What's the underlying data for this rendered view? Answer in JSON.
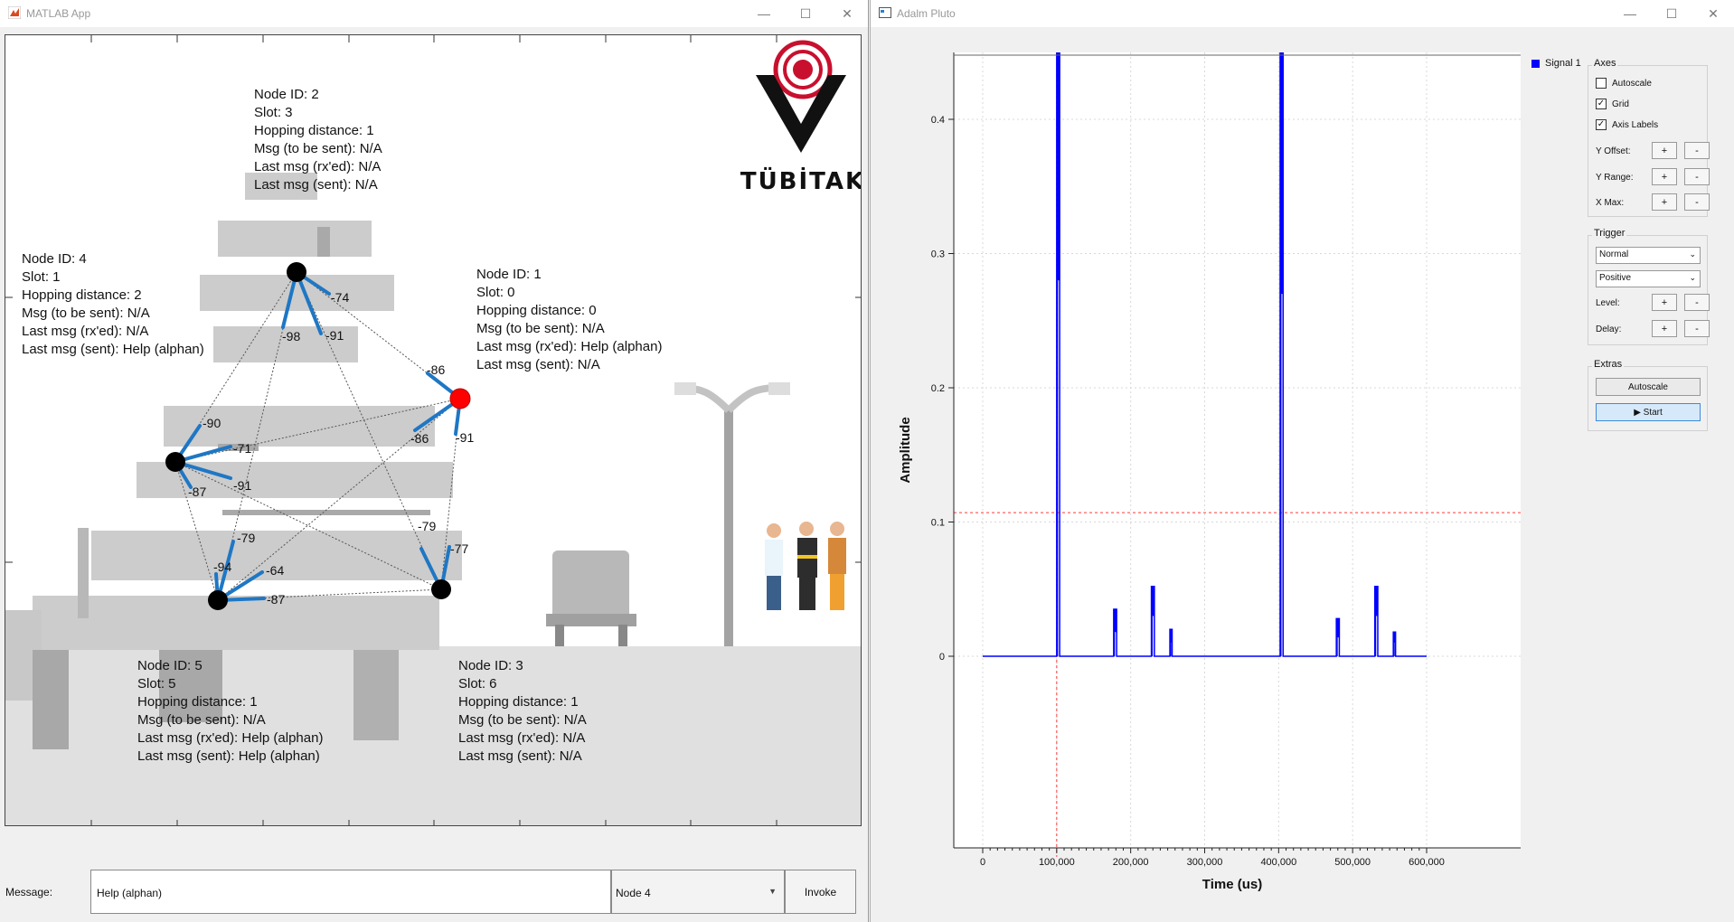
{
  "left_window": {
    "title": "MATLAB App",
    "controls": {
      "minimize": "—",
      "maximize": "☐",
      "close": "✕"
    },
    "logo_text": "TÜBİTAK",
    "nodes": [
      {
        "id_text": "Node ID: 2",
        "slot": "Slot: 3",
        "hop": "Hopping distance: 1",
        "to_send": "Msg (to be sent): N/A",
        "rx": "Last msg (rx'ed): N/A",
        "sent": "Last msg (sent): N/A"
      },
      {
        "id_text": "Node ID: 4",
        "slot": "Slot: 1",
        "hop": "Hopping distance: 2",
        "to_send": "Msg (to be sent): N/A",
        "rx": "Last msg (rx'ed): N/A",
        "sent": "Last msg (sent): Help (alphan)"
      },
      {
        "id_text": "Node ID: 1",
        "slot": "Slot: 0",
        "hop": "Hopping distance: 0",
        "to_send": "Msg (to be sent): N/A",
        "rx": "Last msg (rx'ed): Help (alphan)",
        "sent": "Last msg (sent): N/A"
      },
      {
        "id_text": "Node ID: 5",
        "slot": "Slot: 5",
        "hop": "Hopping distance: 1",
        "to_send": "Msg (to be sent): N/A",
        "rx": "Last msg (rx'ed): Help (alphan)",
        "sent": "Last msg (sent): Help (alphan)"
      },
      {
        "id_text": "Node ID: 3",
        "slot": "Slot: 6",
        "hop": "Hopping distance: 1",
        "to_send": "Msg (to be sent): N/A",
        "rx": "Last msg (rx'ed): N/A",
        "sent": "Last msg (sent): N/A"
      }
    ],
    "rssi_labels": [
      "-74",
      "-98",
      "-91",
      "-86",
      "-86",
      "-91",
      "-90",
      "-71",
      "-87",
      "-91",
      "-79",
      "-64",
      "-94",
      "-87",
      "-79",
      "-77"
    ],
    "message_label": "Message:",
    "message_value": "Help (alphan)",
    "node_select_value": "Node 4",
    "invoke_label": "Invoke"
  },
  "right_window": {
    "title": "Adalm Pluto",
    "controls": {
      "minimize": "—",
      "maximize": "☐",
      "close": "✕"
    },
    "legend": "Signal 1",
    "axes_group": {
      "title": "Axes",
      "autoscale": {
        "label": "Autoscale",
        "checked": false
      },
      "grid": {
        "label": "Grid",
        "checked": true
      },
      "axis_labels": {
        "label": "Axis Labels",
        "checked": true
      },
      "y_offset": "Y Offset:",
      "y_range": "Y Range:",
      "x_max": "X Max:",
      "plus": "+",
      "minus": "-"
    },
    "trigger_group": {
      "title": "Trigger",
      "mode": "Normal",
      "slope": "Positive",
      "level": "Level:",
      "delay": "Delay:"
    },
    "extras_group": {
      "title": "Extras",
      "autoscale_btn": "Autoscale",
      "start_btn": "▶ Start"
    }
  },
  "chart_data": {
    "type": "line",
    "xlabel": "Time (us)",
    "ylabel": "Amplitude",
    "xlim": [
      0,
      600000
    ],
    "ylim": [
      -0.03,
      0.46
    ],
    "x_ticks": [
      "0",
      "100,000",
      "200,000",
      "300,000",
      "400,000",
      "500,000",
      "600,000"
    ],
    "y_ticks": [
      "0",
      "0.1",
      "0.2",
      "0.3",
      "0.4"
    ],
    "grid": true,
    "trigger_level": 0.107,
    "trigger_time": 100000,
    "series": [
      {
        "name": "Signal 1",
        "color": "#0000ff",
        "bursts": [
          {
            "x0": 100000,
            "x1": 104000,
            "high": 0.46,
            "low": 0.28
          },
          {
            "x0": 177000,
            "x1": 181000,
            "high": 0.035,
            "low": 0.018
          },
          {
            "x0": 228000,
            "x1": 232000,
            "high": 0.052,
            "low": 0.03
          },
          {
            "x0": 253000,
            "x1": 256000,
            "high": 0.02,
            "low": 0.01
          },
          {
            "x0": 402000,
            "x1": 406000,
            "high": 0.46,
            "low": 0.27
          },
          {
            "x0": 478000,
            "x1": 482000,
            "high": 0.028,
            "low": 0.014
          },
          {
            "x0": 530000,
            "x1": 534000,
            "high": 0.052,
            "low": 0.03
          },
          {
            "x0": 555000,
            "x1": 558000,
            "high": 0.018,
            "low": 0.01
          }
        ]
      }
    ]
  }
}
